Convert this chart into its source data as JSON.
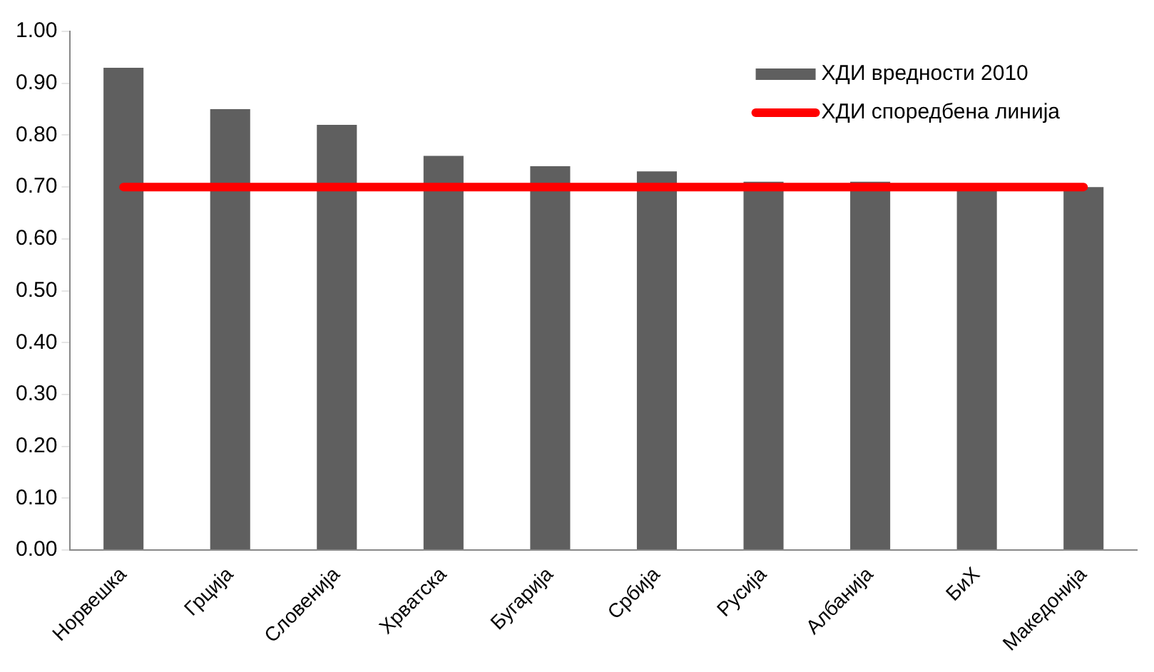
{
  "chart_data": {
    "type": "bar",
    "categories": [
      "Норвешка",
      "Грција",
      "Словенија",
      "Хрватска",
      "Бугарија",
      "Србија",
      "Русија",
      "Албанија",
      "БиХ",
      "Македонија"
    ],
    "series": [
      {
        "name": "ХДИ вредности 2010",
        "color": "#5f5f5f",
        "values": [
          0.93,
          0.85,
          0.82,
          0.76,
          0.74,
          0.73,
          0.71,
          0.71,
          0.7,
          0.7
        ]
      },
      {
        "name": "ХДИ споредбена линија",
        "type": "line",
        "color": "#ff0000",
        "values": [
          0.7,
          0.7,
          0.7,
          0.7,
          0.7,
          0.7,
          0.7,
          0.7,
          0.7,
          0.7
        ]
      }
    ],
    "ylim": [
      0,
      1
    ],
    "yticks": [
      {
        "value": 0,
        "label": "0.00"
      },
      {
        "value": 0.1,
        "label": "0.10"
      },
      {
        "value": 0.2,
        "label": "0.20"
      },
      {
        "value": 0.3,
        "label": "0.30"
      },
      {
        "value": 0.4,
        "label": "0.40"
      },
      {
        "value": 0.5,
        "label": "0.50"
      },
      {
        "value": 0.6,
        "label": "0.60"
      },
      {
        "value": 0.7,
        "label": "0.70"
      },
      {
        "value": 0.8,
        "label": "0.80"
      },
      {
        "value": 0.9,
        "label": "0.90"
      },
      {
        "value": 1,
        "label": "1.00"
      }
    ],
    "grid": false,
    "legend": "top right",
    "marker": "none"
  }
}
